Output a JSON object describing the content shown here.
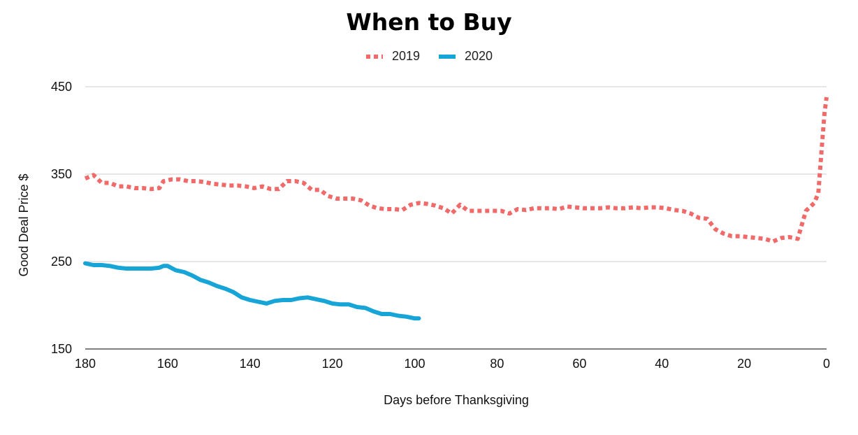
{
  "chart_data": {
    "type": "line",
    "title": "When to Buy",
    "xlabel": "Days before Thanksgiving",
    "ylabel": "Good Deal Price $",
    "xlim": [
      180,
      0
    ],
    "ylim": [
      150,
      450
    ],
    "x_reversed": true,
    "x_ticks": [
      180,
      160,
      140,
      120,
      100,
      80,
      60,
      40,
      20,
      0
    ],
    "y_ticks": [
      150,
      250,
      350,
      450
    ],
    "grid": "horizontal",
    "legend_position": "top-center",
    "series": [
      {
        "name": "2019",
        "color": "#f06a6a",
        "style": "dotted",
        "points": [
          [
            180,
            345
          ],
          [
            178,
            349
          ],
          [
            176,
            340
          ],
          [
            174,
            340
          ],
          [
            172,
            336
          ],
          [
            170,
            336
          ],
          [
            168,
            334
          ],
          [
            166,
            334
          ],
          [
            164,
            333
          ],
          [
            162,
            334
          ],
          [
            161,
            342
          ],
          [
            159,
            344
          ],
          [
            157,
            344
          ],
          [
            155,
            342
          ],
          [
            153,
            342
          ],
          [
            151,
            341
          ],
          [
            149,
            339
          ],
          [
            147,
            338
          ],
          [
            145,
            337
          ],
          [
            143,
            337
          ],
          [
            141,
            336
          ],
          [
            139,
            334
          ],
          [
            137,
            336
          ],
          [
            135,
            333
          ],
          [
            133,
            333
          ],
          [
            131,
            342
          ],
          [
            129,
            342
          ],
          [
            127,
            340
          ],
          [
            125,
            332
          ],
          [
            123,
            332
          ],
          [
            121,
            325
          ],
          [
            119,
            322
          ],
          [
            117,
            322
          ],
          [
            115,
            322
          ],
          [
            113,
            320
          ],
          [
            111,
            314
          ],
          [
            109,
            311
          ],
          [
            107,
            310
          ],
          [
            105,
            310
          ],
          [
            103,
            309
          ],
          [
            101,
            315
          ],
          [
            99,
            317
          ],
          [
            97,
            316
          ],
          [
            95,
            314
          ],
          [
            93,
            311
          ],
          [
            91,
            305
          ],
          [
            89,
            315
          ],
          [
            87,
            308
          ],
          [
            85,
            308
          ],
          [
            83,
            308
          ],
          [
            81,
            308
          ],
          [
            79,
            308
          ],
          [
            77,
            305
          ],
          [
            75,
            310
          ],
          [
            73,
            309
          ],
          [
            71,
            311
          ],
          [
            69,
            311
          ],
          [
            67,
            311
          ],
          [
            65,
            310
          ],
          [
            63,
            313
          ],
          [
            61,
            312
          ],
          [
            59,
            311
          ],
          [
            57,
            311
          ],
          [
            55,
            311
          ],
          [
            53,
            312
          ],
          [
            51,
            311
          ],
          [
            49,
            311
          ],
          [
            47,
            312
          ],
          [
            45,
            311
          ],
          [
            43,
            312
          ],
          [
            41,
            312
          ],
          [
            39,
            311
          ],
          [
            37,
            309
          ],
          [
            35,
            308
          ],
          [
            33,
            305
          ],
          [
            31,
            300
          ],
          [
            29,
            299
          ],
          [
            27,
            287
          ],
          [
            25,
            282
          ],
          [
            23,
            279
          ],
          [
            21,
            279
          ],
          [
            19,
            278
          ],
          [
            17,
            277
          ],
          [
            15,
            276
          ],
          [
            13,
            273
          ],
          [
            11,
            277
          ],
          [
            9,
            278
          ],
          [
            7,
            276
          ],
          [
            5,
            308
          ],
          [
            3,
            317
          ],
          [
            2,
            328
          ],
          [
            1.5,
            360
          ],
          [
            1,
            390
          ],
          [
            0.5,
            420
          ],
          [
            0,
            438
          ]
        ]
      },
      {
        "name": "2020",
        "color": "#17a5d8",
        "style": "solid",
        "points": [
          [
            180,
            248
          ],
          [
            178,
            246
          ],
          [
            176,
            246
          ],
          [
            174,
            245
          ],
          [
            172,
            243
          ],
          [
            170,
            242
          ],
          [
            168,
            242
          ],
          [
            166,
            242
          ],
          [
            164,
            242
          ],
          [
            162,
            243
          ],
          [
            161,
            245
          ],
          [
            160,
            245
          ],
          [
            158,
            240
          ],
          [
            156,
            238
          ],
          [
            154,
            234
          ],
          [
            152,
            229
          ],
          [
            150,
            226
          ],
          [
            148,
            222
          ],
          [
            146,
            219
          ],
          [
            144,
            215
          ],
          [
            142,
            209
          ],
          [
            140,
            206
          ],
          [
            138,
            204
          ],
          [
            136,
            202
          ],
          [
            134,
            205
          ],
          [
            132,
            206
          ],
          [
            130,
            206
          ],
          [
            128,
            208
          ],
          [
            126,
            209
          ],
          [
            124,
            207
          ],
          [
            122,
            205
          ],
          [
            120,
            202
          ],
          [
            118,
            201
          ],
          [
            116,
            201
          ],
          [
            114,
            198
          ],
          [
            112,
            197
          ],
          [
            110,
            193
          ],
          [
            108,
            190
          ],
          [
            106,
            190
          ],
          [
            104,
            188
          ],
          [
            102,
            187
          ],
          [
            100,
            185
          ],
          [
            99,
            185
          ]
        ]
      }
    ]
  }
}
